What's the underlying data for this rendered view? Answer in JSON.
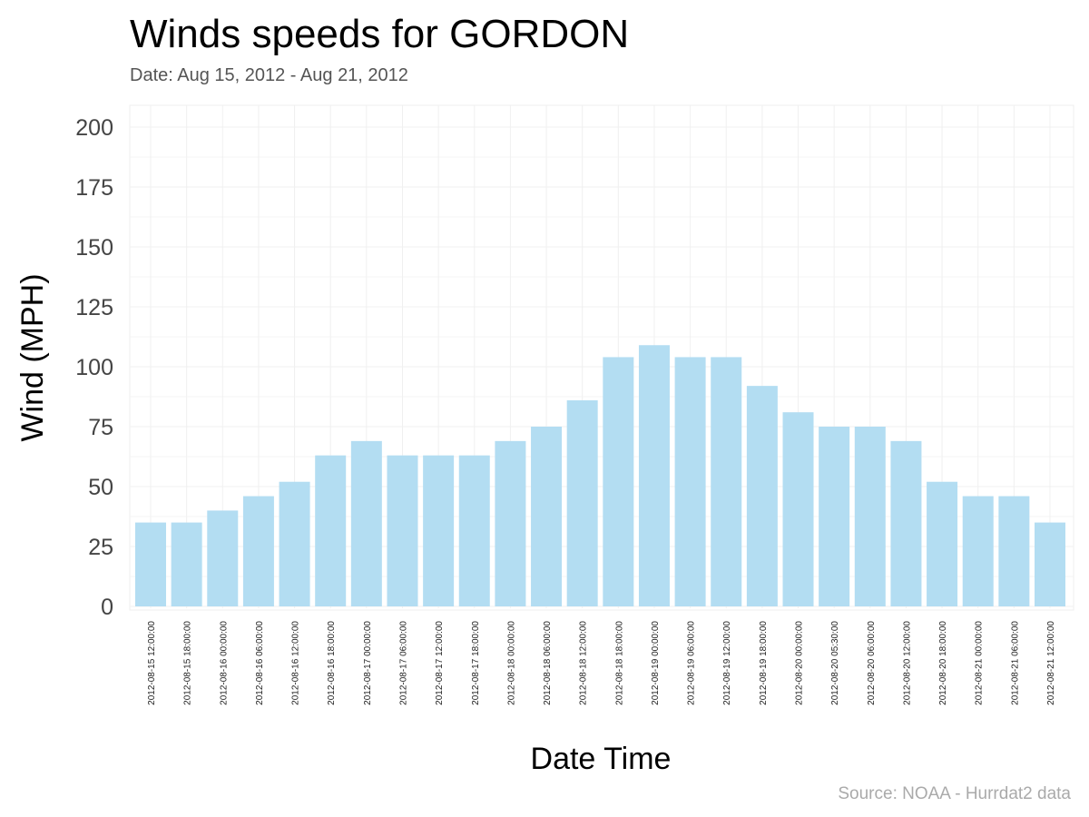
{
  "chart_data": {
    "type": "bar",
    "title": "Winds speeds for GORDON",
    "subtitle": "Date:  Aug 15, 2012 - Aug 21, 2012",
    "xlabel": "Date Time",
    "ylabel": "Wind (MPH)",
    "caption": "Source: NOAA - Hurrdat2 data",
    "ylim": [
      0,
      210
    ],
    "yticks": [
      "0",
      "25",
      "50",
      "75",
      "100",
      "125",
      "150",
      "175",
      "200"
    ],
    "grid": true,
    "bar_color": "#b3ddf2",
    "categories": [
      "2012-08-15 12:00:00",
      "2012-08-15 18:00:00",
      "2012-08-16 00:00:00",
      "2012-08-16 06:00:00",
      "2012-08-16 12:00:00",
      "2012-08-16 18:00:00",
      "2012-08-17 00:00:00",
      "2012-08-17 06:00:00",
      "2012-08-17 12:00:00",
      "2012-08-17 18:00:00",
      "2012-08-18 00:00:00",
      "2012-08-18 06:00:00",
      "2012-08-18 12:00:00",
      "2012-08-18 18:00:00",
      "2012-08-19 00:00:00",
      "2012-08-19 06:00:00",
      "2012-08-19 12:00:00",
      "2012-08-19 18:00:00",
      "2012-08-20 00:00:00",
      "2012-08-20 05:30:00",
      "2012-08-20 06:00:00",
      "2012-08-20 12:00:00",
      "2012-08-20 18:00:00",
      "2012-08-21 00:00:00",
      "2012-08-21 06:00:00",
      "2012-08-21 12:00:00"
    ],
    "values": [
      35,
      35,
      40,
      46,
      52,
      63,
      69,
      63,
      63,
      63,
      69,
      75,
      86,
      104,
      109,
      104,
      104,
      92,
      81,
      75,
      75,
      69,
      52,
      46,
      46,
      35
    ]
  }
}
